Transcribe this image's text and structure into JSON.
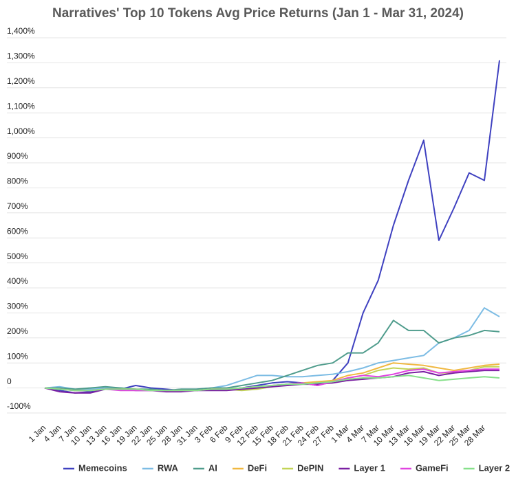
{
  "chart_data": {
    "type": "line",
    "title": "Narratives' Top 10 Tokens Avg Price Returns (Jan 1 - Mar 31, 2024)",
    "categories": [
      "1 Jan",
      "4 Jan",
      "7 Jan",
      "10 Jan",
      "13 Jan",
      "16 Jan",
      "19 Jan",
      "22 Jan",
      "25 Jan",
      "28 Jan",
      "31 Jan",
      "3 Feb",
      "6 Feb",
      "9 Feb",
      "12 Feb",
      "15 Feb",
      "18 Feb",
      "21 Feb",
      "24 Feb",
      "27 Feb",
      "1 Mar",
      "4 Mar",
      "7 Mar",
      "10 Mar",
      "13 Mar",
      "16 Mar",
      "19 Mar",
      "22 Mar",
      "25 Mar",
      "28 Mar",
      null
    ],
    "ylim": [
      -100,
      1400
    ],
    "yticks": [
      {
        "value": -100,
        "label": "-100%"
      },
      0,
      {
        "value": 100,
        "label": "100%"
      },
      {
        "value": 200,
        "label": "200%"
      },
      {
        "value": 300,
        "label": "300%"
      },
      {
        "value": 400,
        "label": "400%"
      },
      {
        "value": 500,
        "label": "500%"
      },
      {
        "value": 600,
        "label": "600%"
      },
      {
        "value": 700,
        "label": "700%"
      },
      {
        "value": 800,
        "label": "800%"
      },
      {
        "value": 900,
        "label": "900%"
      },
      {
        "value": 1000,
        "label": "1,000%"
      },
      {
        "value": 1100,
        "label": "1,100%"
      },
      {
        "value": 1200,
        "label": "1,200%"
      },
      {
        "value": 1300,
        "label": "1,300%"
      },
      {
        "value": 1400,
        "label": "1,400%"
      }
    ],
    "grid": true,
    "series": [
      {
        "name": "Memecoins",
        "color": "#3f41c0",
        "values": [
          0,
          -10,
          -20,
          -15,
          0,
          -5,
          10,
          0,
          -5,
          -10,
          -10,
          -5,
          -5,
          0,
          10,
          20,
          25,
          20,
          10,
          30,
          100,
          300,
          430,
          650,
          830,
          990,
          590,
          720,
          860,
          830,
          1310
        ]
      },
      {
        "name": "RWA",
        "color": "#7cbce4",
        "values": [
          0,
          5,
          -5,
          -5,
          0,
          0,
          -5,
          -10,
          -10,
          -5,
          -5,
          0,
          10,
          30,
          50,
          50,
          45,
          45,
          50,
          55,
          65,
          80,
          100,
          110,
          120,
          130,
          180,
          200,
          230,
          320,
          285
        ]
      },
      {
        "name": "AI",
        "color": "#4f9c8c",
        "values": [
          0,
          0,
          -5,
          0,
          5,
          0,
          -5,
          -5,
          -10,
          -5,
          -5,
          0,
          0,
          10,
          20,
          30,
          50,
          70,
          90,
          100,
          140,
          140,
          180,
          270,
          230,
          230,
          180,
          200,
          210,
          230,
          225
        ]
      },
      {
        "name": "DeFi",
        "color": "#f0b840",
        "values": [
          0,
          -5,
          -10,
          -10,
          -5,
          -5,
          -5,
          -10,
          -10,
          -10,
          -10,
          -5,
          -5,
          0,
          5,
          10,
          15,
          20,
          25,
          30,
          50,
          60,
          80,
          100,
          95,
          90,
          80,
          70,
          80,
          90,
          95
        ]
      },
      {
        "name": "DePIN",
        "color": "#c2d456",
        "values": [
          0,
          -5,
          -10,
          -10,
          -5,
          -5,
          -5,
          -10,
          -10,
          -10,
          -10,
          -5,
          -5,
          -10,
          -5,
          5,
          15,
          20,
          15,
          25,
          40,
          50,
          70,
          80,
          75,
          80,
          60,
          60,
          70,
          85,
          85
        ]
      },
      {
        "name": "Layer 1",
        "color": "#7a1fa2",
        "values": [
          0,
          -15,
          -20,
          -20,
          -5,
          -5,
          -10,
          -10,
          -15,
          -15,
          -10,
          -10,
          -10,
          -5,
          0,
          5,
          10,
          15,
          15,
          20,
          30,
          35,
          40,
          45,
          60,
          65,
          50,
          60,
          65,
          70,
          70
        ]
      },
      {
        "name": "GameFi",
        "color": "#e044e0",
        "values": [
          0,
          -5,
          -10,
          -10,
          -5,
          -10,
          -10,
          -10,
          -10,
          -10,
          -10,
          -5,
          -5,
          0,
          5,
          10,
          15,
          20,
          10,
          25,
          40,
          50,
          45,
          55,
          70,
          75,
          60,
          65,
          70,
          75,
          75
        ]
      },
      {
        "name": "Layer 2",
        "color": "#86e08a",
        "values": [
          0,
          -5,
          -10,
          -10,
          -5,
          -5,
          -5,
          -10,
          -10,
          -10,
          -10,
          -5,
          -5,
          0,
          5,
          10,
          15,
          15,
          20,
          25,
          35,
          40,
          40,
          45,
          50,
          40,
          30,
          35,
          40,
          45,
          40
        ]
      }
    ]
  }
}
